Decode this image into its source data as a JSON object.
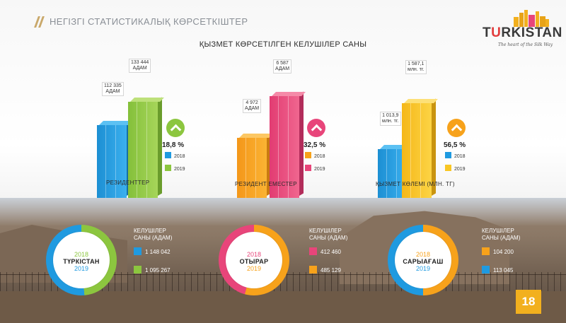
{
  "header": {
    "title": "НЕГІЗГІ СТАТИСТИКАЛЫҚ КӨРСЕТКІШТЕР"
  },
  "subtitle": "ҚЫЗМЕТ КӨРСЕТІЛГЕН КЕЛУШІЛЕР САНЫ",
  "logo": {
    "word_pre": "T",
    "word_u": "U",
    "word_post": "RKISTAN",
    "tagline": "The heart of the Silk Way"
  },
  "colors": {
    "blue": "#1f9ae0",
    "green": "#8cc63f",
    "pink": "#e8457a",
    "orange": "#f7a21b",
    "yellow": "#f9c623",
    "gold": "#f2b01e",
    "header_slash": "#c9a86a"
  },
  "groups": [
    {
      "category": "РЕЗИДЕНТТЕР",
      "bars": [
        {
          "year": "2018",
          "value_line1": "112 335",
          "value_line2": "АДАМ"
        },
        {
          "year": "2019",
          "value_line1": "133 444",
          "value_line2": "АДАМ"
        }
      ],
      "growth": "18,8 %",
      "legend": [
        "2018",
        "2019"
      ]
    },
    {
      "category": "РЕЗИДЕНТ ЕМЕСТЕР",
      "bars": [
        {
          "year": "2018",
          "value_line1": "4 972",
          "value_line2": "АДАМ"
        },
        {
          "year": "2019",
          "value_line1": "6 587",
          "value_line2": "АДАМ"
        }
      ],
      "growth": "32,5 %",
      "legend": [
        "2018",
        "2019"
      ]
    },
    {
      "category": "ҚЫЗМЕТ КӨЛЕМІ (МЛН. ТГ)",
      "bars": [
        {
          "year": "2018",
          "value_line1": "1 013,9",
          "value_line2": "млн. тг."
        },
        {
          "year": "2019",
          "value_line1": "1 587,1",
          "value_line2": "млн. тг."
        }
      ],
      "growth": "56,5 %",
      "legend": [
        "2018",
        "2019"
      ]
    }
  ],
  "chart_data": [
    {
      "type": "bar",
      "categories": [
        "2018",
        "2019"
      ],
      "values": [
        112335,
        133444
      ],
      "xlabel": "РЕЗИДЕНТТЕР",
      "growth_pct": 18.8
    },
    {
      "type": "bar",
      "categories": [
        "2018",
        "2019"
      ],
      "values": [
        4972,
        6587
      ],
      "xlabel": "РЕЗИДЕНТ ЕМЕСТЕР",
      "growth_pct": 32.5
    },
    {
      "type": "bar",
      "categories": [
        "2018",
        "2019"
      ],
      "values": [
        1013.9,
        1587.1
      ],
      "xlabel": "ҚЫЗМЕТ КӨЛЕМІ (МЛН. ТГ)",
      "growth_pct": 56.5
    }
  ],
  "cities": [
    {
      "year1": "2018",
      "name": "ТҮРКІСТАН",
      "year2": "2019",
      "visitors_label_1": "КЕЛУШІЛЕР",
      "visitors_label_2": "САНЫ (АДАМ)",
      "v2018": "1 148 042",
      "v2019": "1 095 267"
    },
    {
      "year1": "2018",
      "name": "ОТЫРАР",
      "year2": "2019",
      "visitors_label_1": "КЕЛУШІЛЕР",
      "visitors_label_2": "САНЫ (АДАМ)",
      "v2018": "412 460",
      "v2019": "485 129"
    },
    {
      "year1": "2018",
      "name": "САРЫАҒАШ",
      "year2": "2019",
      "visitors_label_1": "КЕЛУШІЛЕР",
      "visitors_label_2": "САНЫ (АДАМ)",
      "v2018": "104 200",
      "v2019": "113 045"
    }
  ],
  "page_number": "18"
}
